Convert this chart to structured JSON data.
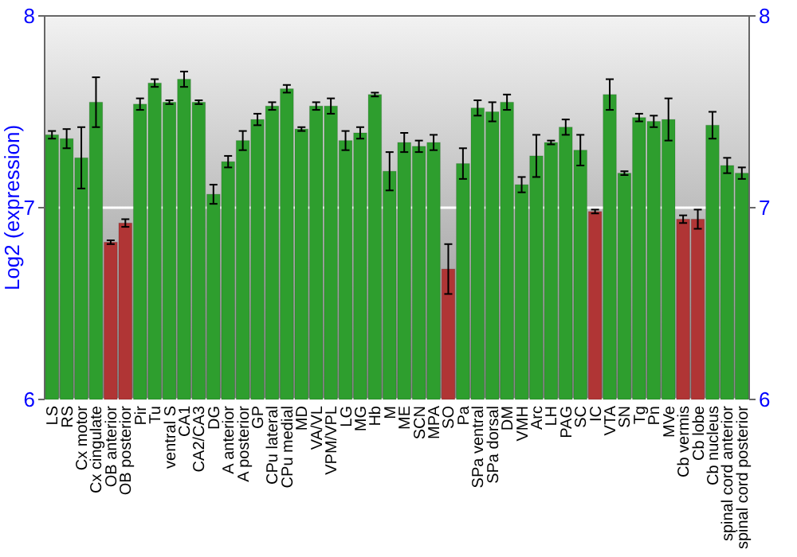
{
  "chart_data": {
    "type": "bar",
    "ylabel": "Log2 (expression)",
    "categories": [
      "LS",
      "RS",
      "Cx motor",
      "Cx cingulate",
      "OB anterior",
      "OB posterior",
      "Pir",
      "Tu",
      "ventral S",
      "CA1",
      "CA2/CA3",
      "DG",
      "A anterior",
      "A posterior",
      "GP",
      "CPu lateral",
      "CPu medial",
      "MD",
      "VA/VL",
      "VPM/VPL",
      "LG",
      "MG",
      "Hb",
      "M",
      "ME",
      "SCN",
      "MPA",
      "SO",
      "Pa",
      "SPa ventral",
      "SPa dorsal",
      "DM",
      "VMH",
      "Arc",
      "LH",
      "PAG",
      "SC",
      "IC",
      "VTA",
      "SN",
      "Tg",
      "Pn",
      "MVe",
      "Cb vermis",
      "Cb lobe",
      "Cb nucleus",
      "spinal cord anterior",
      "spinal cord posterior"
    ],
    "values": [
      7.38,
      7.36,
      7.26,
      7.55,
      6.82,
      6.92,
      7.54,
      7.65,
      7.55,
      7.67,
      7.55,
      7.07,
      7.24,
      7.35,
      7.46,
      7.53,
      7.62,
      7.41,
      7.53,
      7.53,
      7.35,
      7.39,
      7.59,
      7.19,
      7.34,
      7.32,
      7.34,
      6.68,
      7.23,
      7.52,
      7.5,
      7.55,
      7.12,
      7.27,
      7.34,
      7.42,
      7.3,
      6.98,
      7.59,
      7.18,
      7.47,
      7.45,
      7.46,
      6.94,
      6.94,
      7.43,
      7.22,
      7.18
    ],
    "errors": [
      0.02,
      0.05,
      0.16,
      0.13,
      0.01,
      0.02,
      0.03,
      0.02,
      0.01,
      0.04,
      0.01,
      0.05,
      0.03,
      0.05,
      0.03,
      0.02,
      0.02,
      0.01,
      0.02,
      0.04,
      0.05,
      0.03,
      0.01,
      0.1,
      0.05,
      0.03,
      0.04,
      0.13,
      0.08,
      0.04,
      0.05,
      0.04,
      0.04,
      0.11,
      0.01,
      0.04,
      0.08,
      0.01,
      0.08,
      0.01,
      0.02,
      0.03,
      0.11,
      0.02,
      0.05,
      0.07,
      0.04,
      0.03
    ],
    "colors": [
      "#2e9e2e",
      "#2e9e2e",
      "#2e9e2e",
      "#2e9e2e",
      "#b03535",
      "#b03535",
      "#2e9e2e",
      "#2e9e2e",
      "#2e9e2e",
      "#2e9e2e",
      "#2e9e2e",
      "#2e9e2e",
      "#2e9e2e",
      "#2e9e2e",
      "#2e9e2e",
      "#2e9e2e",
      "#2e9e2e",
      "#2e9e2e",
      "#2e9e2e",
      "#2e9e2e",
      "#2e9e2e",
      "#2e9e2e",
      "#2e9e2e",
      "#2e9e2e",
      "#2e9e2e",
      "#2e9e2e",
      "#2e9e2e",
      "#b03535",
      "#2e9e2e",
      "#2e9e2e",
      "#2e9e2e",
      "#2e9e2e",
      "#2e9e2e",
      "#2e9e2e",
      "#2e9e2e",
      "#2e9e2e",
      "#2e9e2e",
      "#b03535",
      "#2e9e2e",
      "#2e9e2e",
      "#2e9e2e",
      "#2e9e2e",
      "#2e9e2e",
      "#b03535",
      "#b03535",
      "#2e9e2e",
      "#2e9e2e",
      "#2e9e2e"
    ],
    "ylim": [
      6,
      8
    ],
    "yticks": [
      6,
      7,
      8
    ],
    "y2lim": [
      6,
      8
    ],
    "y2ticks": [
      6,
      7,
      8
    ],
    "grid": "y"
  }
}
